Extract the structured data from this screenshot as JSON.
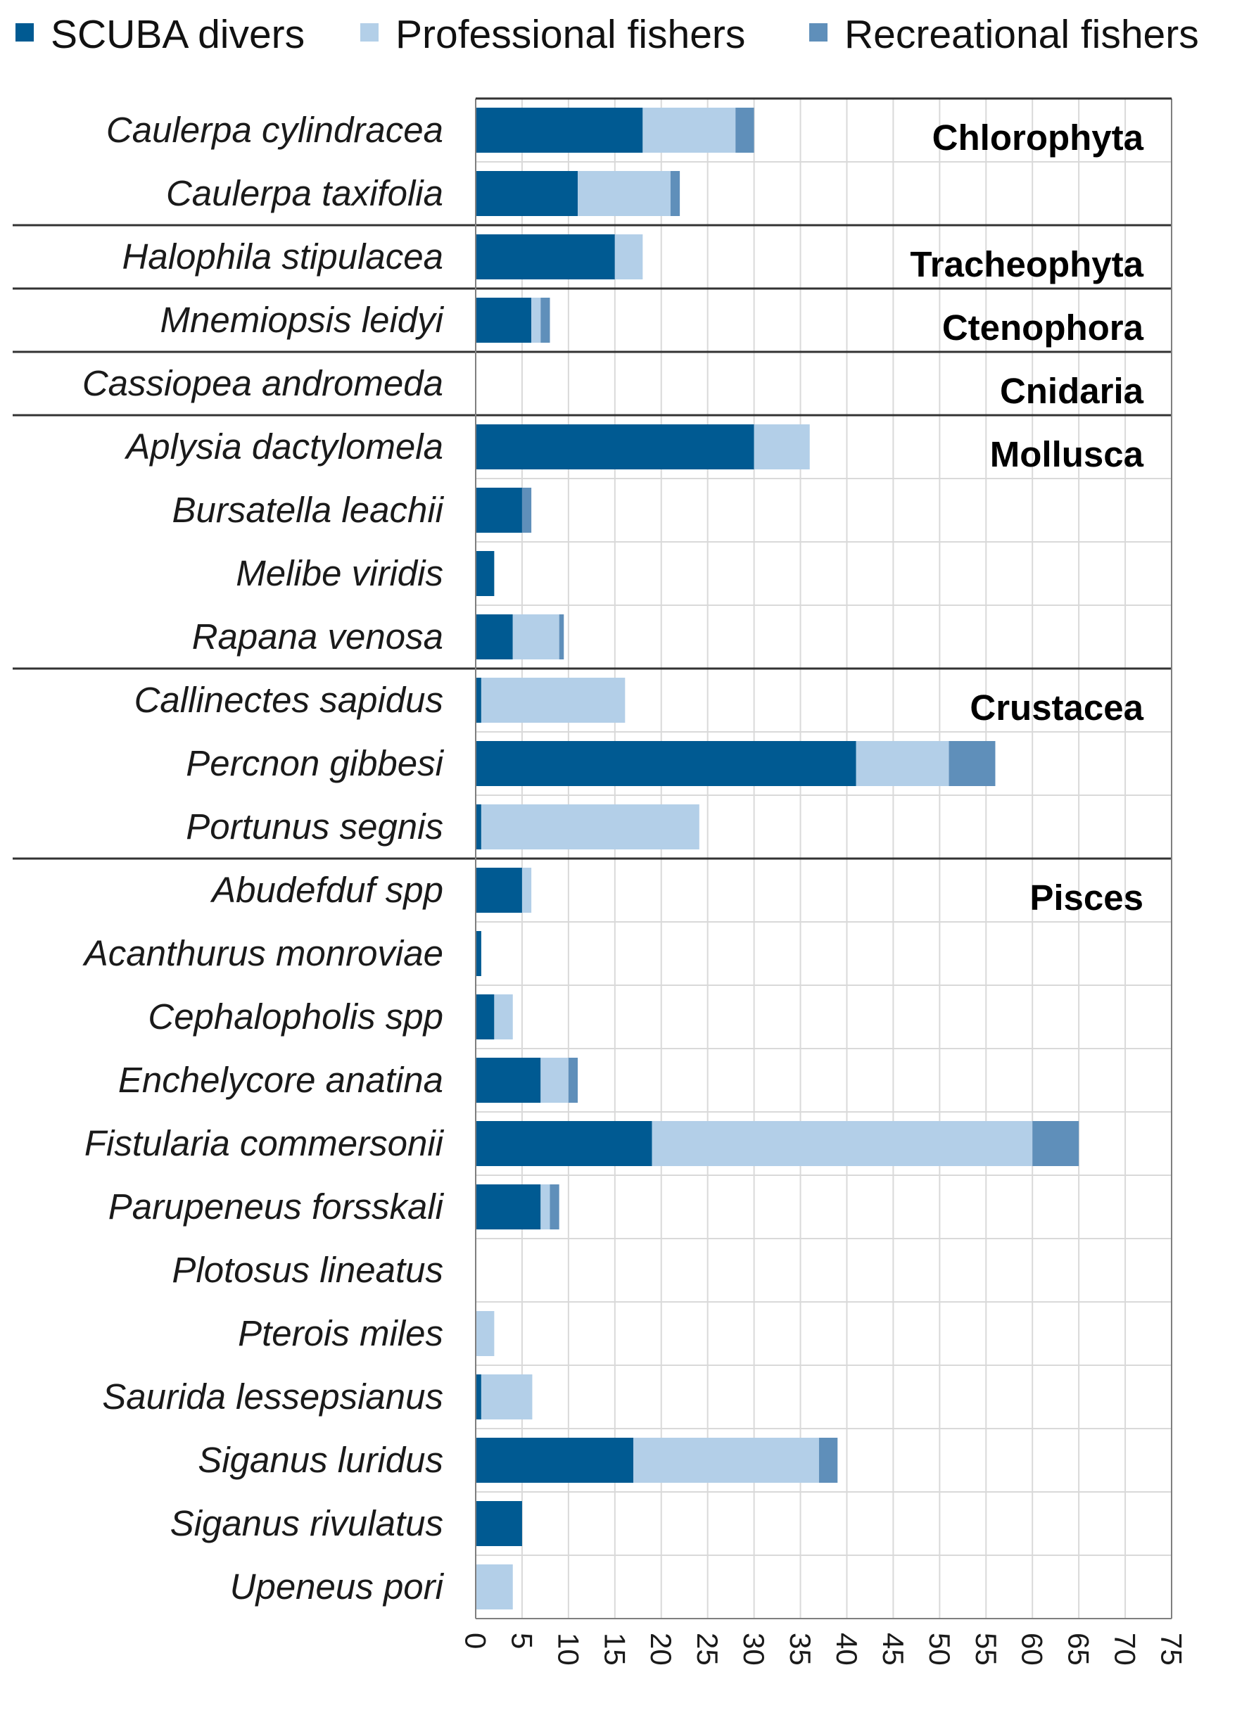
{
  "chart_data": {
    "type": "bar",
    "orientation": "horizontal",
    "stacked": true,
    "categories": [
      "Caulerpa cylindracea",
      "Caulerpa taxifolia",
      "Halophila stipulacea",
      "Mnemiopsis leidyi",
      "Cassiopea andromeda",
      "Aplysia dactylomela",
      "Bursatella leachii",
      "Melibe viridis",
      "Rapana venosa",
      "Callinectes sapidus",
      "Percnon gibbesi",
      "Portunus segnis",
      "Abudefduf  spp",
      "Acanthurus monroviae",
      "Cephalopholis spp",
      "Enchelycore anatina",
      "Fistularia commersonii",
      "Parupeneus forsskali",
      "Plotosus lineatus",
      "Pterois miles",
      "Saurida lessepsianus",
      "Siganus luridus",
      "Siganus rivulatus",
      "Upeneus pori"
    ],
    "series": [
      {
        "name": "SCUBA divers",
        "color": "#005a92",
        "values": [
          18,
          11,
          15,
          6,
          0,
          30,
          5,
          2,
          4,
          0.6,
          41,
          0.6,
          5,
          0.6,
          2,
          7,
          19,
          7,
          0,
          0,
          0.6,
          17,
          5,
          0
        ]
      },
      {
        "name": "Professional fishers",
        "color": "#b3cfe8",
        "values": [
          10,
          10,
          3,
          1,
          0,
          6,
          0,
          0,
          5,
          15.5,
          10,
          23.5,
          1,
          0,
          2,
          3,
          41,
          1,
          0,
          2,
          5.5,
          20,
          0,
          4
        ]
      },
      {
        "name": "Recreational fishers",
        "color": "#5f8fba",
        "values": [
          2,
          1,
          0,
          1,
          0,
          0,
          1,
          0,
          0.5,
          0,
          5,
          0,
          0,
          0,
          0,
          1,
          5,
          1,
          0,
          0,
          0,
          2,
          0,
          0
        ]
      }
    ],
    "groups": [
      {
        "name": "Chlorophyta",
        "first": 0,
        "count": 2
      },
      {
        "name": "Tracheophyta",
        "first": 2,
        "count": 1
      },
      {
        "name": "Ctenophora",
        "first": 3,
        "count": 1
      },
      {
        "name": "Cnidaria",
        "first": 4,
        "count": 1
      },
      {
        "name": "Mollusca",
        "first": 5,
        "count": 4
      },
      {
        "name": "Crustacea",
        "first": 9,
        "count": 3
      },
      {
        "name": "Pisces",
        "first": 12,
        "count": 12
      }
    ],
    "xlim": [
      0,
      75
    ],
    "xticks": [
      0,
      5,
      10,
      15,
      20,
      25,
      30,
      35,
      40,
      45,
      50,
      55,
      60,
      65,
      70,
      75
    ],
    "legend_position": "top",
    "grid": true
  }
}
